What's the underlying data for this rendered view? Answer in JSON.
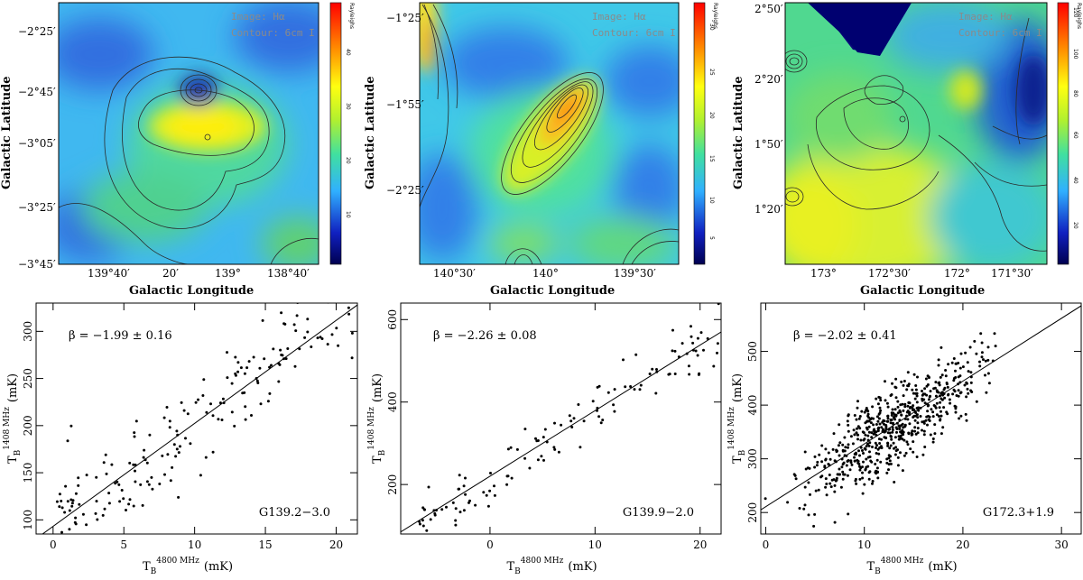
{
  "overlay": {
    "image_label": "Image: Hα",
    "contour_label": "Contour: 6cm I",
    "colorbar_unit": "Rayleighs"
  },
  "colors": {
    "map_low": "#1f2d9a",
    "map_mid": "#40c0ff",
    "map_green": "#5fd060",
    "map_yellow": "#ffff20",
    "map_high": "#ff3000",
    "points": "#000000",
    "contour": "#2a2a2a"
  },
  "maps": [
    {
      "id": "map-g139-2",
      "xlabel": "Galactic Longitude",
      "ylabel": "Galactic Latitude",
      "xticks": [
        "139°40′",
        "20′",
        "139°",
        "138°40′"
      ],
      "yticks": [
        "−2°25′",
        "−2°45′",
        "−3°05′",
        "−3°25′",
        "−3°45′"
      ],
      "colorbar_ticks": [
        "40",
        "30",
        "20",
        "10"
      ]
    },
    {
      "id": "map-g139-9",
      "xlabel": "Galactic Longitude",
      "ylabel": "Galactic Latitude",
      "xticks": [
        "140°30′",
        "140°",
        "139°30′"
      ],
      "yticks": [
        "−1°25′",
        "−1°55′",
        "−2°25′"
      ],
      "colorbar_ticks": [
        "30",
        "25",
        "20",
        "15",
        "10",
        "5"
      ]
    },
    {
      "id": "map-g172-3",
      "xlabel": "Galactic Longitude",
      "ylabel": "Galactic Latitude",
      "xticks": [
        "173°",
        "172°30′",
        "172°",
        "171°30′"
      ],
      "yticks": [
        "2°50′",
        "2°20′",
        "1°50′",
        "1°20′"
      ],
      "colorbar_ticks": [
        "120",
        "100",
        "80",
        "60",
        "40",
        "20"
      ]
    }
  ],
  "chart_data": [
    {
      "type": "scatter",
      "title": "G139.2−3.0",
      "beta": "β = −1.99 ± 0.16",
      "xlabel": "(mK)",
      "ylabel": "(mK)",
      "x_symbol": "T",
      "x_sub": "B",
      "x_sup": "4800 MHz",
      "y_symbol": "T",
      "y_sub": "B",
      "y_sup": "1408 MHz",
      "xlim": [
        -1.2,
        21.5
      ],
      "ylim": [
        85,
        330
      ],
      "xticks": [
        0,
        5,
        10,
        15,
        20
      ],
      "yticks": [
        100,
        150,
        200,
        250,
        300
      ],
      "fit": {
        "x": [
          -1.2,
          21.5
        ],
        "y": [
          80,
          328
        ]
      },
      "n_points": 185,
      "seed": 11,
      "noise": 26
    },
    {
      "type": "scatter",
      "title": "G139.9−2.0",
      "beta": "β = −2.26 ± 0.08",
      "xlabel": "(mK)",
      "ylabel": "(mK)",
      "x_symbol": "T",
      "x_sub": "B",
      "x_sup": "4800 MHz",
      "y_symbol": "T",
      "y_sub": "B",
      "y_sup": "1408 MHz",
      "xlim": [
        -8.5,
        22
      ],
      "ylim": [
        80,
        640
      ],
      "xticks": [
        0,
        10,
        20
      ],
      "yticks": [
        200,
        400,
        600
      ],
      "fit": {
        "x": [
          -8.5,
          22
        ],
        "y": [
          85,
          570
        ]
      },
      "n_points": 120,
      "seed": 23,
      "noise": 32
    },
    {
      "type": "scatter",
      "title": "G172.3+1.9",
      "beta": "β = −2.02 ± 0.41",
      "xlabel": "(mK)",
      "ylabel": "(mK)",
      "x_symbol": "T",
      "x_sub": "B",
      "x_sup": "4800 MHz",
      "y_symbol": "T",
      "y_sub": "B",
      "y_sup": "1408 MHz",
      "xlim": [
        -0.5,
        32
      ],
      "ylim": [
        160,
        590
      ],
      "xticks": [
        0,
        10,
        20,
        30
      ],
      "yticks": [
        200,
        300,
        400,
        500
      ],
      "fit": {
        "x": [
          -0.5,
          32
        ],
        "y": [
          205,
          585
        ]
      },
      "n_points": 620,
      "seed": 37,
      "noise": 38
    }
  ]
}
